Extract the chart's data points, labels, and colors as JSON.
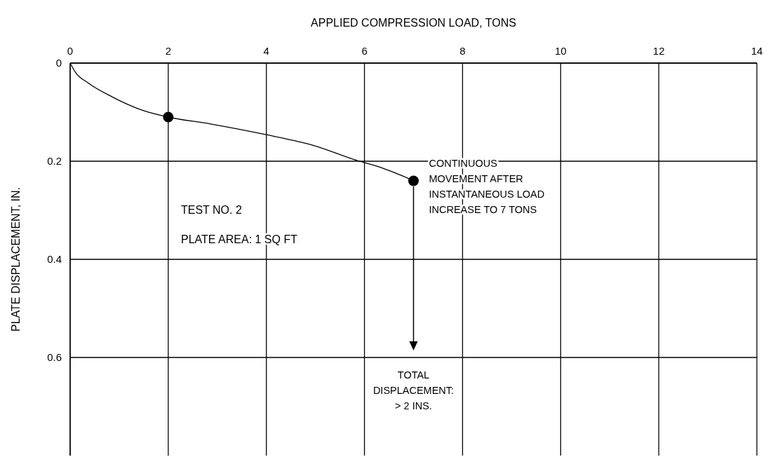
{
  "chart_data": {
    "type": "line",
    "xlabel": "APPLIED COMPRESSION LOAD, TONS",
    "ylabel": "PLATE DISPLACEMENT, IN.",
    "xlim": [
      0,
      14
    ],
    "xticks": [
      0,
      2,
      4,
      6,
      8,
      10,
      12,
      14
    ],
    "ylim": [
      0.8,
      0
    ],
    "yticks": [
      0,
      0.2,
      0.4,
      0.6
    ],
    "grid": true,
    "series": [
      {
        "type": "line",
        "color": "#000000",
        "marker": "none",
        "x": [
          0,
          0.11,
          0.36,
          0.86,
          1.5,
          2.0,
          2.86,
          4.0,
          5.0,
          5.8,
          6.37,
          6.8,
          7.0
        ],
        "values": [
          0,
          0.019,
          0.04,
          0.069,
          0.097,
          0.11,
          0.124,
          0.146,
          0.169,
          0.197,
          0.214,
          0.231,
          0.24
        ]
      },
      {
        "type": "scatter",
        "color": "#000000",
        "marker": "circle",
        "x": [
          2,
          7
        ],
        "values": [
          0.11,
          0.24
        ]
      }
    ],
    "annotations": [
      "TEST NO. 2",
      "PLATE AREA: 1 SQ FT",
      {
        "text": "CONTINUOUS\nMOVEMENT AFTER\nINSTANTANEOUS LOAD\nINCREASE TO 7 TONS",
        "x": 7,
        "y": 0.24
      },
      "TOTAL\nDISPLACEMENT:\n> 2 INS."
    ]
  }
}
